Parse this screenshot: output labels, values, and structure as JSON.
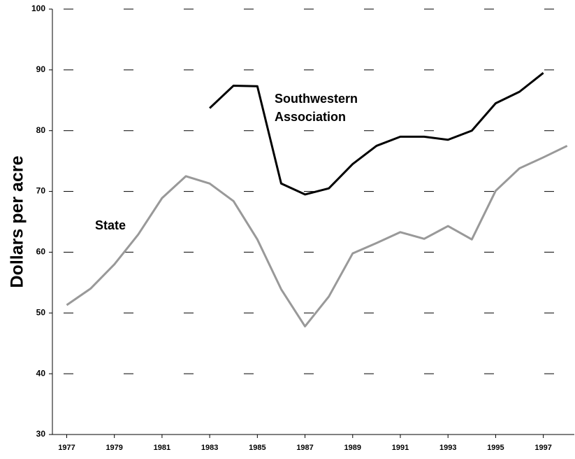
{
  "chart_data": {
    "type": "line",
    "y_label": "Dollars per acre",
    "x": [
      1977,
      1978,
      1979,
      1980,
      1981,
      1982,
      1983,
      1984,
      1985,
      1986,
      1987,
      1988,
      1989,
      1990,
      1991,
      1992,
      1993,
      1994,
      1995,
      1996,
      1997,
      1998
    ],
    "series": [
      {
        "name": "State",
        "color": "#999999",
        "values": [
          51.3,
          54.0,
          58.0,
          62.9,
          68.9,
          72.5,
          71.3,
          68.4,
          62.1,
          53.9,
          47.8,
          52.7,
          59.8,
          61.5,
          63.3,
          62.2,
          64.3,
          62.1,
          70.1,
          73.8,
          75.6,
          77.5
        ]
      },
      {
        "name": "Southwestern Association",
        "color": "#000000",
        "values": [
          null,
          null,
          null,
          null,
          null,
          null,
          83.7,
          87.4,
          87.3,
          71.3,
          69.5,
          70.5,
          74.5,
          77.5,
          79.0,
          79.0,
          78.5,
          80.0,
          84.5,
          86.4,
          89.5,
          null
        ]
      }
    ],
    "xlim": [
      1976.4,
      1998.3
    ],
    "xticks": [
      1977,
      1979,
      1981,
      1983,
      1985,
      1987,
      1989,
      1991,
      1993,
      1995,
      1997
    ],
    "ylim": [
      30,
      100
    ],
    "yticks": [
      30,
      40,
      50,
      60,
      70,
      80,
      90,
      100
    ],
    "grid": true
  }
}
